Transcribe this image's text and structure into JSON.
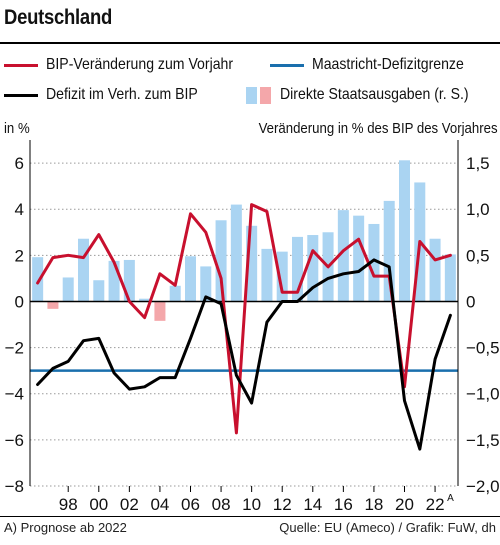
{
  "title": "Deutschland",
  "legend": [
    {
      "label": "BIP-Veränderung zum Vorjahr",
      "color": "#c8102e",
      "kind": "line"
    },
    {
      "label": "Maastricht-Defizitgrenze",
      "color": "#1a6fad",
      "kind": "line"
    },
    {
      "label": "Defizit im Verh. zum BIP",
      "color": "#000000",
      "kind": "line"
    },
    {
      "label": "Direkte Staatsausgaben (r. S.)",
      "colors": [
        "#aad4f2",
        "#f4a7aa"
      ],
      "kind": "bars"
    }
  ],
  "left_axis_title": "in %",
  "right_axis_title": "Veränderung in % des BIP des Vorjahres",
  "footer_left": "A) Prognose ab 2022",
  "footer_right": "Quelle: EU (Ameco) / Grafik: FuW, dh",
  "chart_data": {
    "type": "bar+line",
    "title": "Deutschland",
    "x_years": [
      1996,
      1997,
      1998,
      1999,
      2000,
      2001,
      2002,
      2003,
      2004,
      2005,
      2006,
      2007,
      2008,
      2009,
      2010,
      2011,
      2012,
      2013,
      2014,
      2015,
      2016,
      2017,
      2018,
      2019,
      2020,
      2021,
      2022,
      2023
    ],
    "x_tick_labels": [
      "98",
      "00",
      "02",
      "04",
      "06",
      "08",
      "10",
      "12",
      "14",
      "16",
      "18",
      "20",
      "22"
    ],
    "x_tick_years": [
      1998,
      2000,
      2002,
      2004,
      2006,
      2008,
      2010,
      2012,
      2014,
      2016,
      2018,
      2020,
      2022
    ],
    "x_tick_superscript": {
      "22": "A"
    },
    "left_axis": {
      "label": "in %",
      "ylim": [
        -8,
        7
      ],
      "ticks": [
        -8,
        -6,
        -4,
        -2,
        0,
        2,
        4,
        6
      ]
    },
    "right_axis": {
      "label": "Veränderung in % des BIP des Vorjahres",
      "ylim": [
        -2.0,
        1.75
      ],
      "ticks": [
        -2.0,
        -1.5,
        -1.0,
        -0.5,
        0,
        0.5,
        1.0,
        1.5
      ]
    },
    "series": [
      {
        "name": "BIP-Veränderung zum Vorjahr",
        "axis": "left",
        "type": "line",
        "color": "#c8102e",
        "values": [
          0.8,
          1.9,
          2.0,
          1.9,
          2.9,
          1.7,
          0.0,
          -0.7,
          1.2,
          0.7,
          3.8,
          3.0,
          1.0,
          -5.7,
          4.2,
          3.9,
          0.4,
          0.4,
          2.2,
          1.5,
          2.2,
          2.7,
          1.1,
          1.1,
          -3.7,
          2.6,
          1.8,
          2.0
        ]
      },
      {
        "name": "Defizit im Verh. zum BIP",
        "axis": "left",
        "type": "line",
        "color": "#000000",
        "values": [
          -3.6,
          -2.9,
          -2.6,
          -1.7,
          -1.6,
          -3.1,
          -3.8,
          -3.7,
          -3.3,
          -3.3,
          -1.6,
          0.2,
          -0.1,
          -3.2,
          -4.4,
          -0.9,
          0.0,
          0.0,
          0.6,
          1.0,
          1.2,
          1.3,
          1.8,
          1.5,
          -4.3,
          -6.4,
          -2.5,
          -0.6
        ]
      },
      {
        "name": "Maastricht-Defizitgrenze",
        "axis": "left",
        "type": "hline",
        "color": "#1a6fad",
        "value": -3
      },
      {
        "name": "Direkte Staatsausgaben (r. S.)",
        "axis": "right",
        "type": "bar",
        "colors": {
          "positive": "#aad4f2",
          "negative": "#f4a7aa"
        },
        "values": [
          0.48,
          -0.08,
          0.26,
          0.68,
          0.23,
          0.44,
          0.45,
          0.03,
          -0.21,
          0.17,
          0.49,
          0.38,
          0.88,
          1.05,
          0.82,
          0.57,
          0.54,
          0.7,
          0.72,
          0.75,
          0.99,
          0.93,
          0.84,
          1.09,
          1.53,
          1.29,
          0.68,
          0.51
        ]
      }
    ]
  }
}
